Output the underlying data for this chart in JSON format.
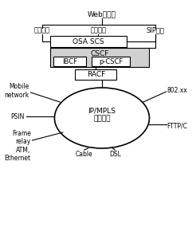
{
  "title": "",
  "bg_color": "#ffffff",
  "text_color": "#000000",
  "box_color": "#ffffff",
  "box_edge": "#000000",
  "gray_fill": "#d0d0d0",
  "labels": {
    "web": "Web可攜性",
    "session": "會談應用",
    "web_service": "網站服務",
    "sip": "SIP應用",
    "osa": "OSA SCS",
    "cscf": "CSCF",
    "ibcf": "IBCF",
    "pcscf": "p-CSCF",
    "racf": "RACF",
    "core": "IP/MPLS\n核心網路",
    "mobile": "Mobile\nnetwork",
    "psin": "PSIN",
    "frame": "Frame\nrelay\nATM,\nEthernet",
    "cable": "Cable",
    "dsl": "DSL",
    "802": "802.xx",
    "fttp": "FTTP/C"
  }
}
